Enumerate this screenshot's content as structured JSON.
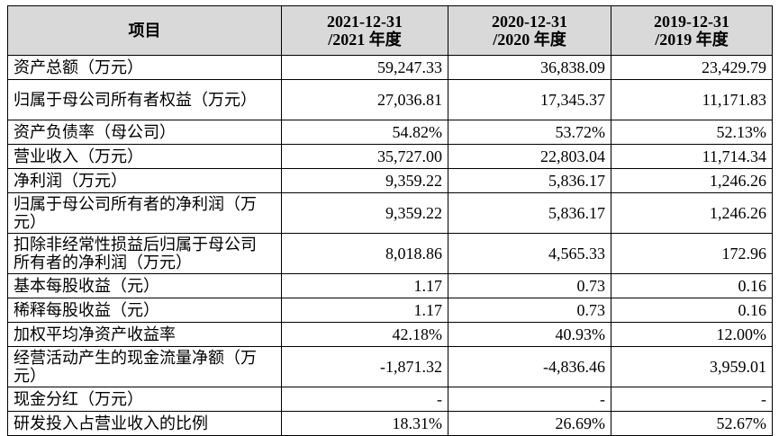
{
  "table": {
    "header": [
      "项目",
      [
        "2021-12-31",
        "/2021 年度"
      ],
      [
        "2020-12-31",
        "/2020 年度"
      ],
      [
        "2019-12-31",
        "/2019 年度"
      ]
    ],
    "rows": [
      [
        "资产总额（万元）",
        "59,247.33",
        "36,838.09",
        "23,429.79"
      ],
      [
        "归属于母公司所有者权益（万元）",
        "27,036.81",
        "17,345.37",
        "11,171.83"
      ],
      [
        "资产负债率（母公司）",
        "54.82%",
        "53.72%",
        "52.13%"
      ],
      [
        "营业收入（万元）",
        "35,727.00",
        "22,803.04",
        "11,714.34"
      ],
      [
        "净利润（万元）",
        "9,359.22",
        "5,836.17",
        "1,246.26"
      ],
      [
        "归属于母公司所有者的净利润（万元）",
        "9,359.22",
        "5,836.17",
        "1,246.26"
      ],
      [
        "扣除非经常性损益后归属于母公司所有者的净利润（万元）",
        "8,018.86",
        "4,565.33",
        "172.96"
      ],
      [
        "基本每股收益（元）",
        "1.17",
        "0.73",
        "0.16"
      ],
      [
        "稀释每股收益（元）",
        "1.17",
        "0.73",
        "0.16"
      ],
      [
        "加权平均净资产收益率",
        "42.18%",
        "40.93%",
        "12.00%"
      ],
      [
        "经营活动产生的现金流量净额（万元）",
        "-1,871.32",
        "-4,836.46",
        "3,959.01"
      ],
      [
        "现金分红（万元）",
        "-",
        "-",
        "-"
      ],
      [
        "研发投入占营业收入的比例",
        "18.31%",
        "26.69%",
        "52.67%"
      ]
    ]
  }
}
